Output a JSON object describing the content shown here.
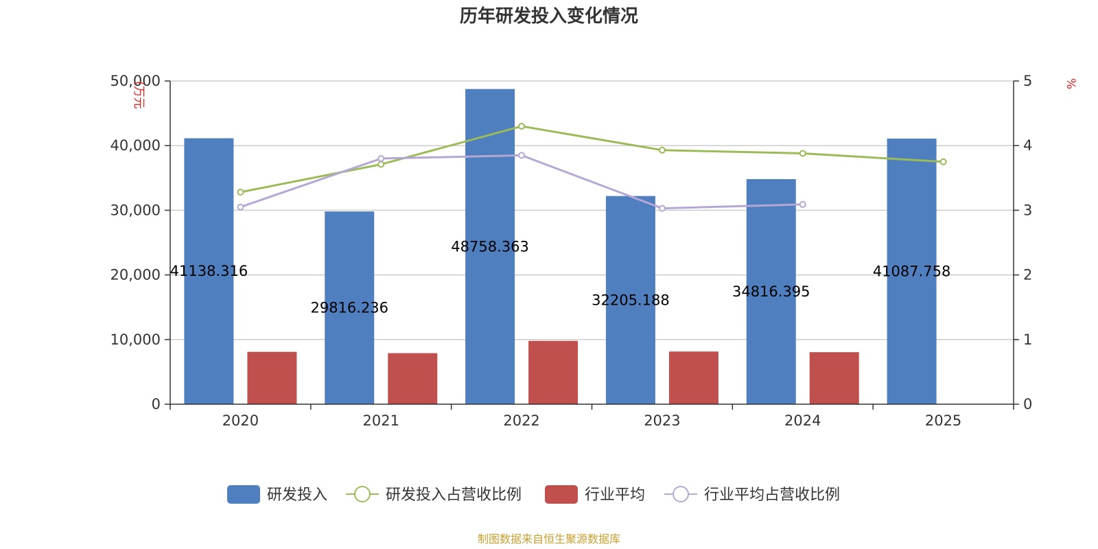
{
  "chart_data": {
    "type": "bar",
    "title": "历年研发投入变化情况",
    "categories": [
      "2020",
      "2021",
      "2022",
      "2023",
      "2024",
      "2025"
    ],
    "left_axis": {
      "unit": "(万元",
      "ylim": [
        0,
        50000
      ],
      "ticks": [
        "0",
        "10,000",
        "20,000",
        "30,000",
        "40,000",
        "50,000"
      ],
      "tick_values": [
        0,
        10000,
        20000,
        30000,
        40000,
        50000
      ]
    },
    "right_axis": {
      "unit": "%",
      "ylim": [
        0,
        5
      ],
      "ticks": [
        "0",
        "1",
        "2",
        "3",
        "4",
        "5"
      ],
      "tick_values": [
        0,
        1,
        2,
        3,
        4,
        5
      ]
    },
    "series": [
      {
        "name": "研发投入",
        "kind": "bar",
        "axis": "left",
        "color": "#4f7fbf",
        "values": [
          41138.316,
          29816.236,
          48758.363,
          32205.188,
          34816.395,
          41087.758
        ],
        "labels": [
          "41138.316",
          "29816.236",
          "48758.363",
          "32205.188",
          "34816.395",
          "41087.758"
        ]
      },
      {
        "name": "研发投入占营收比例",
        "kind": "line",
        "axis": "right",
        "color": "#9bbb59",
        "values": [
          3.28,
          3.71,
          4.3,
          3.93,
          3.88,
          3.75
        ]
      },
      {
        "name": "行业平均",
        "kind": "bar",
        "axis": "left",
        "color": "#c0504d",
        "values": [
          8100,
          7900,
          9800,
          8150,
          8050,
          null
        ]
      },
      {
        "name": "行业平均占营收比例",
        "kind": "line",
        "axis": "right",
        "color": "#b5a7d3",
        "values": [
          3.05,
          3.8,
          3.85,
          3.03,
          3.09,
          null
        ]
      }
    ],
    "source": "制图数据来自恒生聚源数据库"
  }
}
